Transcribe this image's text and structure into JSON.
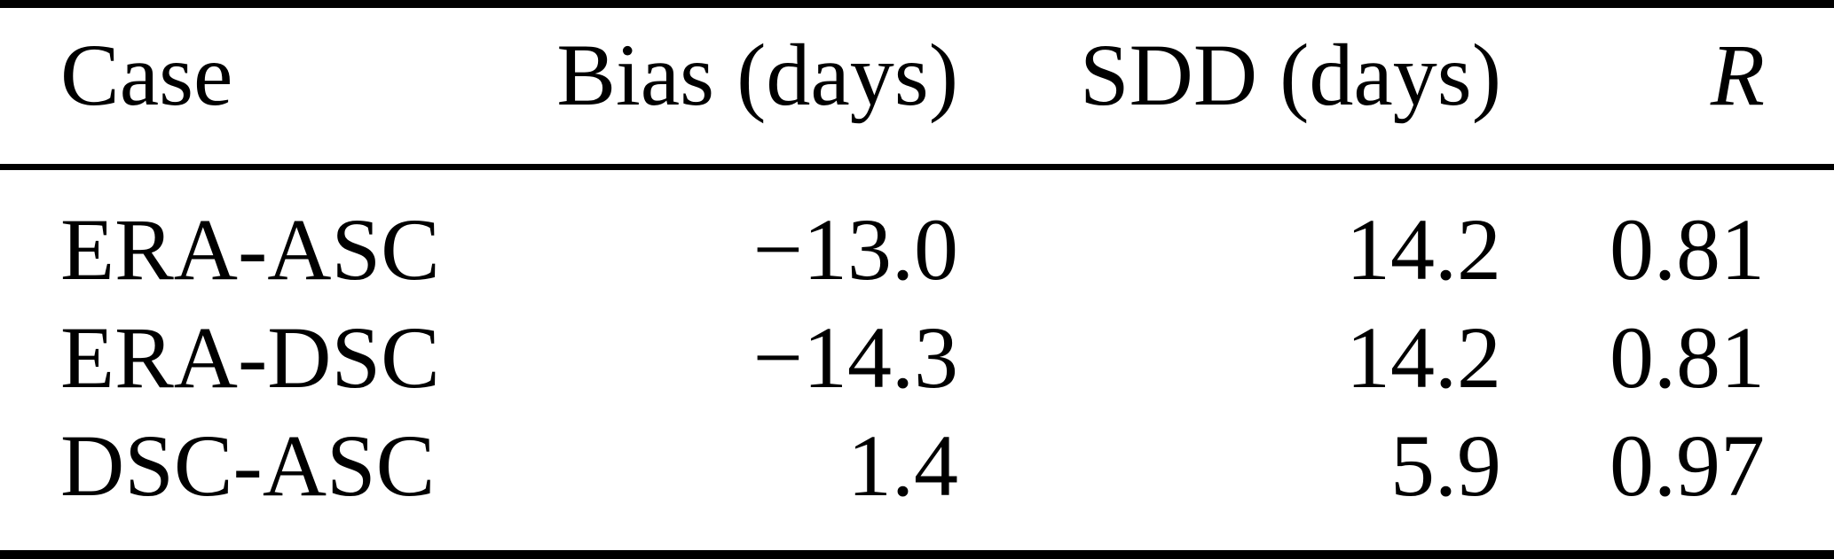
{
  "table": {
    "columns": [
      {
        "label": "Case"
      },
      {
        "label": "Bias (days)"
      },
      {
        "label": "SDD (days)"
      },
      {
        "label": "R"
      }
    ],
    "rows": [
      {
        "case": "ERA-ASC",
        "bias_days": "−13.0",
        "sdd_days": "14.2",
        "r": "0.81"
      },
      {
        "case": "ERA-DSC",
        "bias_days": "−14.3",
        "sdd_days": "14.2",
        "r": "0.81"
      },
      {
        "case": "DSC-ASC",
        "bias_days": "1.4",
        "sdd_days": "5.9",
        "r": "0.97"
      }
    ]
  },
  "chart_data": {
    "type": "table",
    "title": "",
    "columns": [
      "Case",
      "Bias (days)",
      "SDD (days)",
      "R"
    ],
    "rows": [
      [
        "ERA-ASC",
        -13.0,
        14.2,
        0.81
      ],
      [
        "ERA-DSC",
        -14.3,
        14.2,
        0.81
      ],
      [
        "DSC-ASC",
        1.4,
        5.9,
        0.97
      ]
    ]
  },
  "colors": {
    "text": "#000000",
    "background": "#ffffff",
    "rule": "#000000"
  }
}
